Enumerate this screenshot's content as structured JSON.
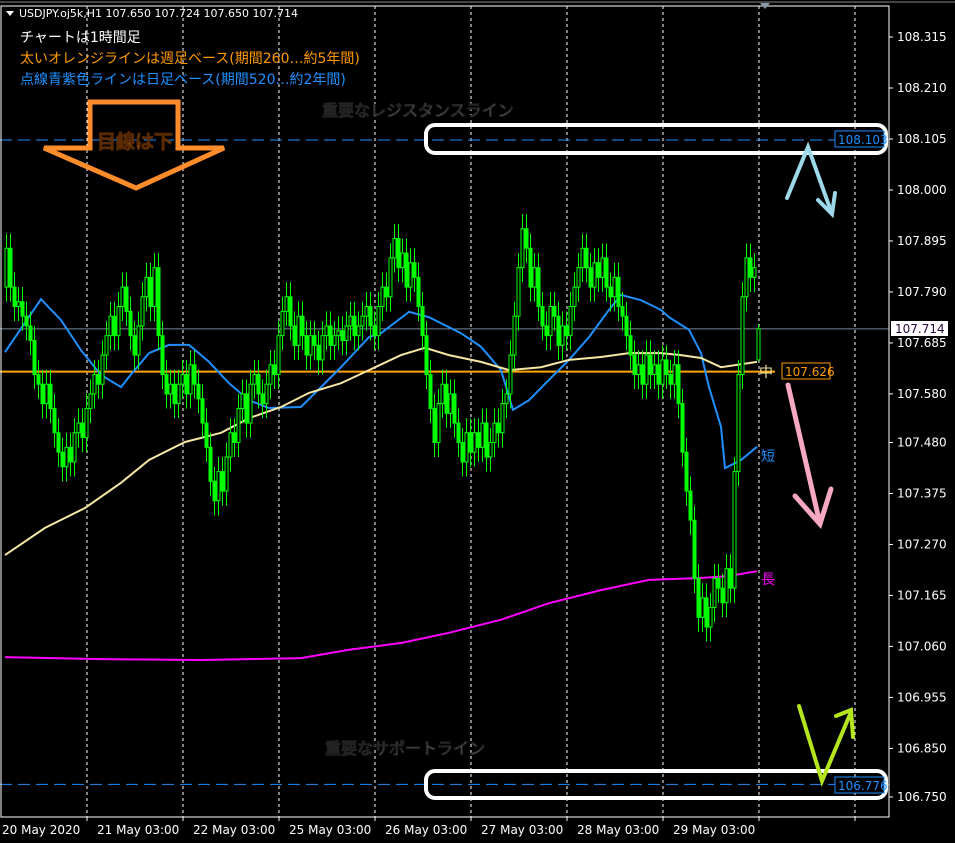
{
  "header": {
    "symbol_line": "USDJPY.oj5k,H1  107.650 107.724 107.650 107.714",
    "notes": [
      "チャートは1時間足",
      "太いオレンジラインは週足ベース(期間260…約5年間)",
      "点線青紫色ラインは日足ベース(期間520…約2年間)"
    ]
  },
  "colors": {
    "background": "#000000",
    "candle": "#00ff00",
    "ma_short": "#1e90ff",
    "ma_mid": "#f5e6a3",
    "ma_long": "#ff00ff",
    "weekly_line": "#ffa500",
    "key_level": "#1e90ff",
    "note_white": "#ffffff",
    "note_orange": "#ff9900",
    "note_blue": "#1e90ff"
  },
  "annotations": {
    "view_label": "目線は下",
    "resistance_label": "重要なレジスタンスライン",
    "support_label": "重要なサポートライン",
    "short_tag": "短",
    "mid_tag": "中",
    "long_tag": "長"
  },
  "chart_data": {
    "type": "candlestick",
    "symbol": "USDJPY.oj5k",
    "timeframe": "H1",
    "last_candle": {
      "open": 107.65,
      "high": 107.724,
      "low": 107.65,
      "close": 107.714
    },
    "ylim": [
      106.72,
      108.38
    ],
    "y_ticks": [
      "108.315",
      "108.210",
      "108.105",
      "108.000",
      "107.895",
      "107.790",
      "107.685",
      "107.580",
      "107.480",
      "107.375",
      "107.270",
      "107.165",
      "107.060",
      "106.955",
      "106.850",
      "106.750"
    ],
    "x_ticks": [
      {
        "index": 0,
        "label": "20 May 2020"
      },
      {
        "index": 24,
        "label": "21 May 03:00"
      },
      {
        "index": 48,
        "label": "22 May 03:00"
      },
      {
        "index": 72,
        "label": "25 May 03:00"
      },
      {
        "index": 96,
        "label": "26 May 03:00"
      },
      {
        "index": 120,
        "label": "27 May 03:00"
      },
      {
        "index": 144,
        "label": "28 May 03:00"
      },
      {
        "index": 168,
        "label": "29 May 03:00"
      }
    ],
    "grid": "vertical dashed",
    "closes": [
      107.88,
      107.8,
      107.76,
      107.77,
      107.74,
      107.72,
      107.69,
      107.62,
      107.6,
      107.56,
      107.6,
      107.55,
      107.5,
      107.46,
      107.43,
      107.47,
      107.44,
      107.5,
      107.52,
      107.49,
      107.55,
      107.58,
      107.62,
      107.6,
      107.66,
      107.7,
      107.74,
      107.7,
      107.76,
      107.8,
      107.75,
      107.7,
      107.66,
      107.72,
      107.78,
      107.82,
      107.76,
      107.84,
      107.7,
      107.62,
      107.58,
      107.6,
      107.56,
      107.6,
      107.62,
      107.58,
      107.64,
      107.6,
      107.57,
      107.52,
      107.47,
      107.4,
      107.36,
      107.42,
      107.38,
      107.45,
      107.5,
      107.48,
      107.55,
      107.58,
      107.52,
      107.6,
      107.62,
      107.58,
      107.56,
      107.6,
      107.64,
      107.62,
      107.7,
      107.75,
      107.78,
      107.72,
      107.68,
      107.74,
      107.7,
      107.66,
      107.7,
      107.68,
      107.65,
      107.7,
      107.72,
      107.68,
      107.7,
      107.71,
      107.69,
      107.72,
      107.74,
      107.7,
      107.72,
      107.74,
      107.76,
      107.72,
      107.7,
      107.76,
      107.8,
      107.78,
      107.86,
      107.9,
      107.84,
      107.87,
      107.8,
      107.85,
      107.82,
      107.76,
      107.7,
      107.62,
      107.55,
      107.48,
      107.56,
      107.6,
      107.54,
      107.58,
      107.52,
      107.48,
      107.44,
      107.5,
      107.46,
      107.5,
      107.47,
      107.52,
      107.45,
      107.48,
      107.52,
      107.5,
      107.56,
      107.58,
      107.66,
      107.74,
      107.84,
      107.92,
      107.88,
      107.8,
      107.84,
      107.76,
      107.72,
      107.7,
      107.76,
      107.74,
      107.68,
      107.72,
      107.7,
      107.76,
      107.8,
      107.84,
      107.88,
      107.84,
      107.8,
      107.85,
      107.82,
      107.86,
      107.8,
      107.78,
      107.82,
      107.76,
      107.74,
      107.7,
      107.66,
      107.62,
      107.64,
      107.6,
      107.66,
      107.62,
      107.64,
      107.6,
      107.65,
      107.62,
      107.6,
      107.64,
      107.56,
      107.46,
      107.38,
      107.32,
      107.2,
      107.12,
      107.16,
      107.1,
      107.14,
      107.2,
      107.18,
      107.15,
      107.22,
      107.18,
      107.42,
      107.62,
      107.78,
      107.86,
      107.82,
      107.84,
      107.714
    ],
    "moving_averages": [
      {
        "name": "短",
        "points": [
          [
            0,
            107.666
          ],
          [
            9,
            107.775
          ],
          [
            14,
            107.732
          ],
          [
            19,
            107.67
          ],
          [
            24,
            107.619
          ],
          [
            29,
            107.594
          ],
          [
            31,
            107.615
          ],
          [
            36,
            107.664
          ],
          [
            41,
            107.681
          ],
          [
            46,
            107.681
          ],
          [
            51,
            107.646
          ],
          [
            56,
            107.602
          ],
          [
            61,
            107.567
          ],
          [
            66,
            107.551
          ],
          [
            74,
            107.553
          ],
          [
            79,
            107.594
          ],
          [
            84,
            107.635
          ],
          [
            91,
            107.697
          ],
          [
            94,
            107.705
          ],
          [
            101,
            107.749
          ],
          [
            106,
            107.738
          ],
          [
            114,
            107.705
          ],
          [
            119,
            107.677
          ],
          [
            124,
            107.629
          ],
          [
            127,
            107.547
          ],
          [
            131,
            107.567
          ],
          [
            136,
            107.609
          ],
          [
            141,
            107.65
          ],
          [
            146,
            107.697
          ],
          [
            151,
            107.753
          ],
          [
            154,
            107.784
          ],
          [
            159,
            107.773
          ],
          [
            164,
            107.753
          ],
          [
            166,
            107.738
          ],
          [
            171,
            107.712
          ],
          [
            174,
            107.664
          ],
          [
            176,
            107.594
          ],
          [
            179,
            107.512
          ],
          [
            180,
            107.427
          ],
          [
            184,
            107.444
          ],
          [
            188,
            107.471
          ]
        ]
      },
      {
        "name": "中",
        "points": [
          [
            0,
            107.248
          ],
          [
            10,
            107.304
          ],
          [
            20,
            107.345
          ],
          [
            29,
            107.397
          ],
          [
            36,
            107.444
          ],
          [
            45,
            107.481
          ],
          [
            54,
            107.5
          ],
          [
            61,
            107.53
          ],
          [
            69,
            107.553
          ],
          [
            76,
            107.582
          ],
          [
            84,
            107.602
          ],
          [
            91,
            107.629
          ],
          [
            99,
            107.66
          ],
          [
            105,
            107.675
          ],
          [
            111,
            107.66
          ],
          [
            119,
            107.646
          ],
          [
            126,
            107.629
          ],
          [
            134,
            107.635
          ],
          [
            141,
            107.65
          ],
          [
            149,
            107.656
          ],
          [
            156,
            107.664
          ],
          [
            164,
            107.664
          ],
          [
            169,
            107.66
          ],
          [
            174,
            107.654
          ],
          [
            179,
            107.635
          ],
          [
            188,
            107.646
          ]
        ]
      },
      {
        "name": "長",
        "points": [
          [
            0,
            107.038
          ],
          [
            24,
            107.034
          ],
          [
            49,
            107.032
          ],
          [
            74,
            107.036
          ],
          [
            86,
            107.053
          ],
          [
            99,
            107.067
          ],
          [
            111,
            107.088
          ],
          [
            124,
            107.115
          ],
          [
            136,
            107.149
          ],
          [
            149,
            107.176
          ],
          [
            161,
            107.197
          ],
          [
            174,
            107.201
          ],
          [
            181,
            107.205
          ],
          [
            188,
            107.215
          ]
        ]
      }
    ],
    "horizontal_lines": {
      "weekly_level": {
        "value": 107.626,
        "label": "107.626"
      },
      "current_price": {
        "value": 107.714,
        "label": "107.714"
      },
      "resistance": {
        "value": 108.103,
        "label": "108.103"
      },
      "support": {
        "value": 106.776,
        "label": "106.776"
      }
    }
  }
}
